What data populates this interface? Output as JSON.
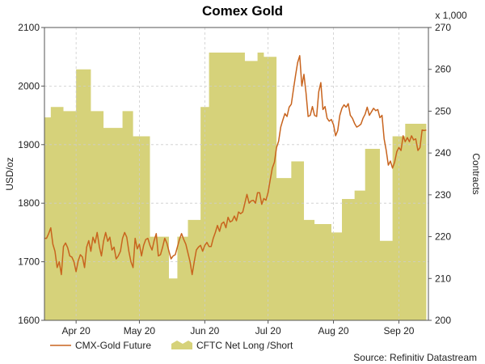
{
  "chart_data": {
    "type": "line",
    "title": "Comex Gold",
    "ylabel_left": "USD/oz",
    "ylabel_right": "Contracts",
    "right_multiplier": "x 1,000",
    "ylim_left": [
      1600,
      2100
    ],
    "ylim_right": [
      200,
      270
    ],
    "left_ticks": [
      1600,
      1700,
      1800,
      1900,
      2000,
      2100
    ],
    "right_ticks": [
      200,
      210,
      220,
      230,
      240,
      250,
      260,
      270
    ],
    "x_range_days": [
      0,
      182
    ],
    "x_ticks": [
      {
        "label": "Apr 20",
        "day": 15
      },
      {
        "label": "May 20",
        "day": 45
      },
      {
        "label": "Jun 20",
        "day": 76
      },
      {
        "label": "Jul 20",
        "day": 106
      },
      {
        "label": "Aug 20",
        "day": 137
      },
      {
        "label": "Sep 20",
        "day": 168
      }
    ],
    "grid": true,
    "legend_position": "bottom-left",
    "series": [
      {
        "name": "CMX-Gold Future",
        "type": "line",
        "axis": "left",
        "color": "#c8641e",
        "points": [
          [
            0,
            1740
          ],
          [
            1,
            1740
          ],
          [
            2,
            1748
          ],
          [
            3,
            1758
          ],
          [
            4,
            1730
          ],
          [
            5,
            1718
          ],
          [
            6,
            1690
          ],
          [
            7,
            1700
          ],
          [
            8,
            1678
          ],
          [
            9,
            1726
          ],
          [
            10,
            1732
          ],
          [
            11,
            1724
          ],
          [
            12,
            1710
          ],
          [
            13,
            1708
          ],
          [
            14,
            1700
          ],
          [
            15,
            1683
          ],
          [
            16,
            1702
          ],
          [
            17,
            1712
          ],
          [
            18,
            1708
          ],
          [
            19,
            1690
          ],
          [
            20,
            1725
          ],
          [
            21,
            1736
          ],
          [
            22,
            1718
          ],
          [
            23,
            1742
          ],
          [
            24,
            1732
          ],
          [
            25,
            1750
          ],
          [
            26,
            1726
          ],
          [
            27,
            1710
          ],
          [
            28,
            1735
          ],
          [
            29,
            1750
          ],
          [
            30,
            1735
          ],
          [
            31,
            1742
          ],
          [
            32,
            1720
          ],
          [
            33,
            1725
          ],
          [
            34,
            1705
          ],
          [
            35,
            1710
          ],
          [
            36,
            1718
          ],
          [
            37,
            1740
          ],
          [
            38,
            1750
          ],
          [
            39,
            1742
          ],
          [
            40,
            1718
          ],
          [
            41,
            1700
          ],
          [
            42,
            1690
          ],
          [
            43,
            1740
          ],
          [
            44,
            1722
          ],
          [
            45,
            1730
          ],
          [
            46,
            1710
          ],
          [
            47,
            1728
          ],
          [
            48,
            1738
          ],
          [
            49,
            1740
          ],
          [
            50,
            1728
          ],
          [
            51,
            1720
          ],
          [
            52,
            1736
          ],
          [
            53,
            1748
          ],
          [
            54,
            1710
          ],
          [
            55,
            1712
          ],
          [
            56,
            1725
          ],
          [
            57,
            1740
          ],
          [
            58,
            1732
          ],
          [
            59,
            1718
          ],
          [
            60,
            1705
          ],
          [
            61,
            1710
          ],
          [
            62,
            1712
          ],
          [
            63,
            1725
          ],
          [
            64,
            1738
          ],
          [
            65,
            1748
          ],
          [
            66,
            1738
          ],
          [
            67,
            1730
          ],
          [
            68,
            1715
          ],
          [
            69,
            1700
          ],
          [
            70,
            1678
          ],
          [
            71,
            1700
          ],
          [
            72,
            1720
          ],
          [
            73,
            1725
          ],
          [
            74,
            1728
          ],
          [
            75,
            1718
          ],
          [
            76,
            1728
          ],
          [
            77,
            1733
          ],
          [
            78,
            1726
          ],
          [
            79,
            1726
          ],
          [
            80,
            1740
          ],
          [
            81,
            1750
          ],
          [
            82,
            1762
          ],
          [
            83,
            1752
          ],
          [
            84,
            1765
          ],
          [
            85,
            1768
          ],
          [
            86,
            1758
          ],
          [
            87,
            1776
          ],
          [
            88,
            1768
          ],
          [
            89,
            1770
          ],
          [
            90,
            1778
          ],
          [
            91,
            1770
          ],
          [
            92,
            1785
          ],
          [
            93,
            1782
          ],
          [
            94,
            1785
          ],
          [
            95,
            1800
          ],
          [
            96,
            1815
          ],
          [
            97,
            1800
          ],
          [
            98,
            1804
          ],
          [
            99,
            1805
          ],
          [
            100,
            1800
          ],
          [
            101,
            1818
          ],
          [
            102,
            1818
          ],
          [
            103,
            1798
          ],
          [
            104,
            1808
          ],
          [
            105,
            1805
          ],
          [
            106,
            1818
          ],
          [
            107,
            1840
          ],
          [
            108,
            1860
          ],
          [
            109,
            1870
          ],
          [
            110,
            1895
          ],
          [
            111,
            1906
          ],
          [
            112,
            1930
          ],
          [
            113,
            1942
          ],
          [
            114,
            1953
          ],
          [
            115,
            1948
          ],
          [
            116,
            1964
          ],
          [
            117,
            1969
          ],
          [
            118,
            1994
          ],
          [
            119,
            2018
          ],
          [
            120,
            2040
          ],
          [
            121,
            2052
          ],
          [
            122,
            2000
          ],
          [
            123,
            2020
          ],
          [
            124,
            1988
          ],
          [
            125,
            1948
          ],
          [
            126,
            1950
          ],
          [
            127,
            1965
          ],
          [
            128,
            1950
          ],
          [
            129,
            1948
          ],
          [
            130,
            1990
          ],
          [
            131,
            2006
          ],
          [
            132,
            1960
          ],
          [
            133,
            1965
          ],
          [
            134,
            1945
          ],
          [
            135,
            1940
          ],
          [
            136,
            1943
          ],
          [
            137,
            1934
          ],
          [
            138,
            1915
          ],
          [
            139,
            1924
          ],
          [
            140,
            1950
          ],
          [
            141,
            1962
          ],
          [
            142,
            1968
          ],
          [
            143,
            1964
          ],
          [
            144,
            1970
          ],
          [
            145,
            1950
          ],
          [
            146,
            1945
          ],
          [
            147,
            1936
          ],
          [
            148,
            1930
          ],
          [
            149,
            1932
          ],
          [
            150,
            1935
          ],
          [
            151,
            1945
          ],
          [
            152,
            1952
          ],
          [
            153,
            1964
          ],
          [
            154,
            1950
          ],
          [
            155,
            1956
          ],
          [
            156,
            1962
          ],
          [
            157,
            1958
          ],
          [
            158,
            1960
          ],
          [
            159,
            1946
          ],
          [
            160,
            1950
          ],
          [
            161,
            1910
          ],
          [
            162,
            1890
          ],
          [
            163,
            1865
          ],
          [
            164,
            1872
          ],
          [
            165,
            1860
          ],
          [
            166,
            1870
          ],
          [
            167,
            1888
          ],
          [
            168,
            1895
          ],
          [
            169,
            1890
          ],
          [
            170,
            1915
          ],
          [
            171,
            1905
          ],
          [
            172,
            1912
          ],
          [
            173,
            1905
          ],
          [
            174,
            1915
          ],
          [
            175,
            1908
          ],
          [
            176,
            1910
          ],
          [
            177,
            1890
          ],
          [
            178,
            1895
          ],
          [
            179,
            1925
          ],
          [
            180,
            1924
          ],
          [
            181,
            1925
          ]
        ]
      },
      {
        "name": "CFTC Net Long /Short",
        "type": "area",
        "axis": "right",
        "color": "#d6d27a",
        "steps": [
          [
            0,
            248.5
          ],
          [
            3,
            251
          ],
          [
            9,
            250
          ],
          [
            15,
            260
          ],
          [
            22,
            250
          ],
          [
            28,
            246
          ],
          [
            37,
            250
          ],
          [
            42,
            244
          ],
          [
            50,
            220
          ],
          [
            55,
            220
          ],
          [
            59,
            210
          ],
          [
            63,
            220
          ],
          [
            68,
            224
          ],
          [
            74,
            251
          ],
          [
            78,
            264
          ],
          [
            90,
            264
          ],
          [
            95,
            262
          ],
          [
            101,
            264
          ],
          [
            104,
            263
          ],
          [
            110,
            234
          ],
          [
            117,
            238
          ],
          [
            123,
            224
          ],
          [
            128,
            223
          ],
          [
            136,
            221
          ],
          [
            141,
            229
          ],
          [
            147,
            231
          ],
          [
            152,
            241
          ],
          [
            159,
            219
          ],
          [
            165,
            244
          ],
          [
            171,
            247
          ],
          [
            176,
            247
          ],
          [
            181,
            247
          ]
        ]
      }
    ],
    "source": "Source: Refinitiv Datastream"
  },
  "colors": {
    "line": "#c8641e",
    "area": "#d6d27a",
    "grid": "#cccccc"
  }
}
